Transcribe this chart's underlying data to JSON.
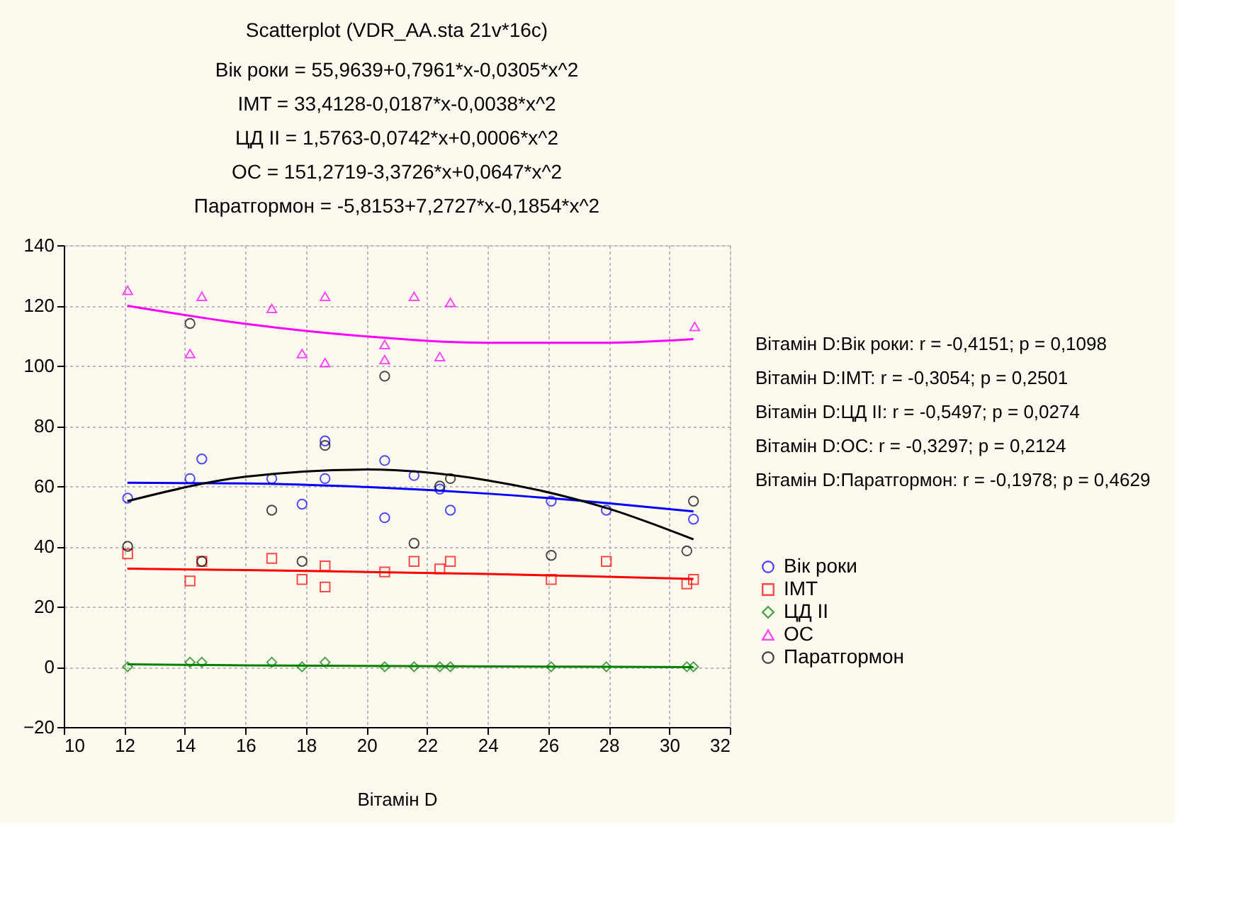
{
  "chart_data": {
    "type": "scatter",
    "title": "Scatterplot (VDR_AA.sta 21v*16c)",
    "subtitle": "Вік роки = 55,9639+0,7961*x-0,0305*x^2\nIMT = 33,4128-0,0187*x-0,0038*x^2\nЦД II = 1,5763-0,0742*x+0,0006*x^2\nОС = 151,2719-3,3726*x+0,0647*x^2\nПаратгормон = -5,8153+7,2727*x-0,1854*x^2",
    "xlabel": "Вітамін D",
    "xlim": [
      10,
      32
    ],
    "xticks": [
      10,
      12,
      14,
      16,
      18,
      20,
      22,
      24,
      26,
      28,
      30,
      32
    ],
    "ylim": [
      -20,
      140
    ],
    "yticks": [
      -20,
      0,
      20,
      40,
      60,
      80,
      100,
      120,
      140
    ],
    "grid": true,
    "legend": "bottom right",
    "annotations": [
      "Вітамін D:Вік роки:   r = -0,4151; p = 0,1098",
      "Вітамін D:IMT:   r = -0,3054; p = 0,2501",
      "Вітамін D:ЦД II:   r = -0,5497; p = 0,0274",
      "Вітамін D:ОС:   r = -0,3297; p = 0,2124",
      "Вітамін D:Паратгормон:   r = -0,1978; p = 0,4629"
    ],
    "series": [
      {
        "name": "Вік роки",
        "marker": "circle",
        "color": "#0000ff",
        "x": [
          12.11,
          14.17,
          14.56,
          16.87,
          17.87,
          18.63,
          18.63,
          20.6,
          20.6,
          21.57,
          22.42,
          22.77,
          26.1,
          27.92,
          30.8
        ],
        "values": [
          56,
          62.5,
          69,
          62.5,
          54,
          75,
          62.5,
          68.5,
          49.5,
          63.5,
          59,
          52,
          55,
          52,
          49
        ]
      },
      {
        "name": "IMT",
        "marker": "square",
        "color": "#ff0000",
        "x": [
          12.11,
          14.17,
          14.56,
          16.87,
          17.87,
          18.63,
          18.63,
          20.6,
          21.57,
          22.42,
          22.77,
          26.1,
          27.92,
          30.58,
          30.8
        ],
        "values": [
          37.5,
          28.5,
          35,
          36,
          29,
          33.5,
          26.5,
          31.5,
          35,
          32.5,
          35,
          29,
          35,
          27.5,
          29
        ]
      },
      {
        "name": "ЦД II",
        "marker": "diamond",
        "color": "#008000",
        "x": [
          12.11,
          14.17,
          14.56,
          16.87,
          17.87,
          18.63,
          20.6,
          21.57,
          22.42,
          22.77,
          26.1,
          27.92,
          30.58,
          30.8
        ],
        "values": [
          0,
          1.5,
          1.5,
          1.5,
          0,
          1.5,
          0,
          0,
          0,
          0,
          0,
          0,
          0,
          0
        ]
      },
      {
        "name": "ОС",
        "marker": "triangle",
        "color": "#ff00ff",
        "x": [
          12.11,
          14.17,
          14.56,
          16.87,
          17.87,
          18.63,
          18.63,
          20.6,
          20.6,
          21.57,
          22.42,
          22.77,
          30.84
        ],
        "values": [
          125,
          104,
          123,
          119,
          104,
          123,
          101,
          107,
          102,
          123,
          103,
          121,
          113
        ]
      },
      {
        "name": "Паратгормон",
        "marker": "circle",
        "color": "#000000",
        "x": [
          12.11,
          14.17,
          14.56,
          16.87,
          17.87,
          18.63,
          20.6,
          21.57,
          22.42,
          22.77,
          26.1,
          30.58,
          30.8
        ],
        "values": [
          40,
          114,
          35,
          52,
          35,
          73.5,
          96.5,
          41,
          60,
          62.5,
          37,
          38.5,
          55
        ]
      },
      {
        "type": "line",
        "color": "#0000ff",
        "x": [
          12.1,
          16,
          20,
          24,
          28,
          30.8
        ],
        "values": [
          61.1,
          60.9,
          59.7,
          57.5,
          54.3,
          51.6
        ]
      },
      {
        "type": "line",
        "color": "#ff0000",
        "x": [
          12.1,
          16,
          20,
          24,
          28,
          30.8
        ],
        "values": [
          32.6,
          32.1,
          31.5,
          30.8,
          29.9,
          29.2
        ]
      },
      {
        "type": "line",
        "color": "#008000",
        "x": [
          12.1,
          16,
          20,
          24,
          28,
          30.8
        ],
        "values": [
          0.8,
          0.5,
          0.3,
          0.1,
          0,
          -0.1
        ]
      },
      {
        "type": "line",
        "color": "#ff00ff",
        "x": [
          12.1,
          16,
          20,
          24,
          28,
          30.8
        ],
        "values": [
          119.9,
          113.9,
          109.7,
          107.6,
          107.6,
          108.8
        ]
      },
      {
        "type": "line",
        "color": "#000000",
        "x": [
          12.1,
          16,
          20,
          24,
          28,
          30.8
        ],
        "values": [
          55,
          63.1,
          65.5,
          61.9,
          52.5,
          42.3
        ]
      }
    ]
  }
}
